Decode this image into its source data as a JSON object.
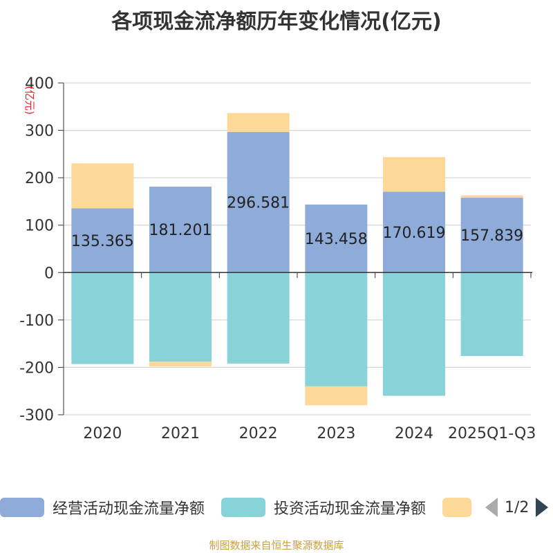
{
  "chart_data": {
    "type": "bar",
    "stacked": true,
    "title": "各项现金流净额历年变化情况(亿元)",
    "ylabel": "(亿元)",
    "ylim": [
      -300,
      400
    ],
    "yticks": [
      400,
      300,
      200,
      100,
      0,
      -100,
      -200,
      -300
    ],
    "categories": [
      "2020",
      "2021",
      "2022",
      "2023",
      "2024",
      "2025Q1-Q3"
    ],
    "series": [
      {
        "name": "经营活动现金流量净额",
        "color": "#8eabd9",
        "values": [
          135.365,
          181.201,
          296.581,
          143.458,
          170.619,
          157.839
        ],
        "labels": [
          "135.365",
          "181.201",
          "296.581",
          "143.458",
          "170.619",
          "157.839"
        ]
      },
      {
        "name": "投资活动现金流量净额",
        "color": "#87d3d8",
        "values": [
          -193,
          -188,
          -192,
          -240,
          -260,
          -176
        ]
      },
      {
        "name": "",
        "color": "#fdd899",
        "values": [
          95,
          -10,
          40,
          -40,
          73,
          5
        ]
      }
    ]
  },
  "legend": {
    "page": "1/2"
  },
  "source": "制图数据来自恒生聚源数据库"
}
